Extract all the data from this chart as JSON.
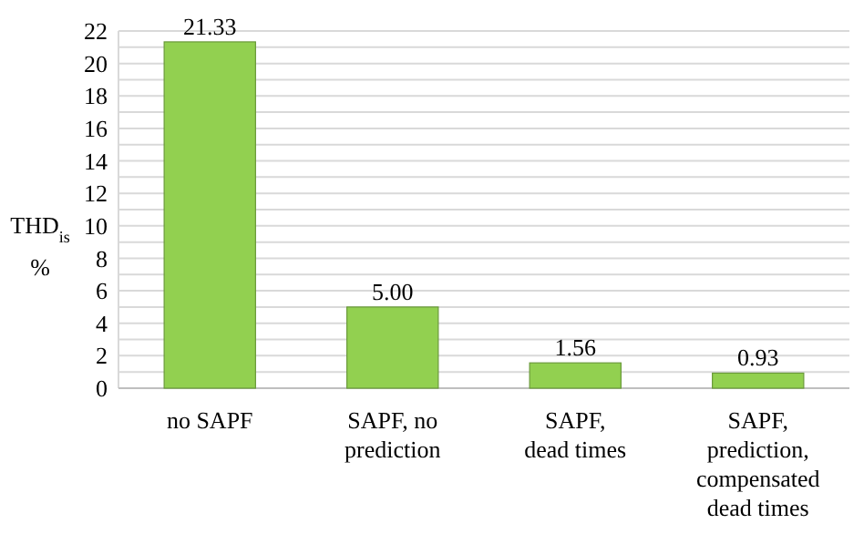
{
  "chart_data": {
    "type": "bar",
    "ylabel": "THD$_{is}$\n%",
    "categories": [
      "no SAPF",
      "SAPF, no\nprediction",
      "SAPF,\ndead times",
      "SAPF,\nprediction,\ncompensated\ndead times"
    ],
    "values": [
      21.33,
      5.0,
      1.56,
      0.93
    ],
    "value_labels": [
      "21.33",
      "5.00",
      "1.56",
      "0.93"
    ],
    "color": "#92d050",
    "ylim": [
      0,
      22
    ],
    "yticks": [
      0,
      {
        "value": 1,
        "label": null
      },
      2,
      {
        "value": 3,
        "label": null
      },
      4,
      {
        "value": 5,
        "label": null
      },
      6,
      {
        "value": 7,
        "label": null
      },
      8,
      {
        "value": 9,
        "label": null
      },
      10,
      {
        "value": 11,
        "label": null
      },
      12,
      {
        "value": 13,
        "label": null
      },
      14,
      {
        "value": 15,
        "label": null
      },
      16,
      {
        "value": 17,
        "label": null
      },
      18,
      {
        "value": 19,
        "label": null
      },
      20,
      {
        "value": 21,
        "label": null
      },
      22
    ],
    "grid": true
  }
}
